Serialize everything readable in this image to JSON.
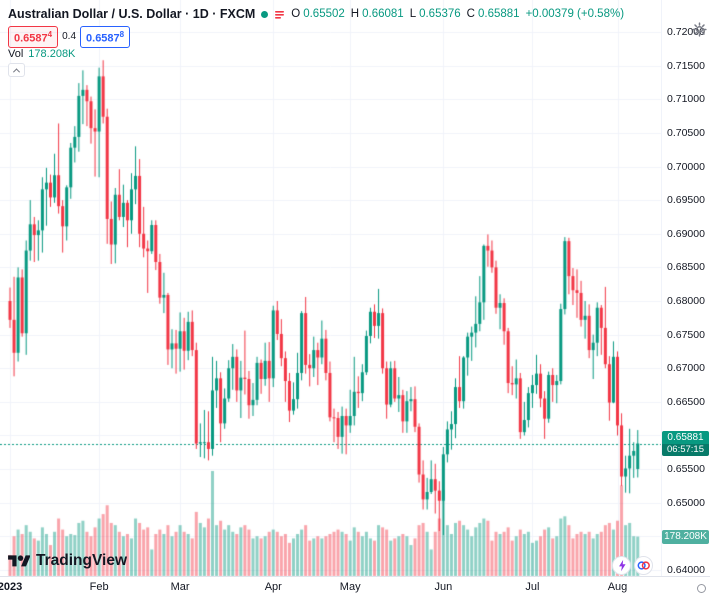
{
  "header": {
    "symbol_title": "Australian Dollar / U.S. Dollar · 1D · FXCM",
    "ohlc": {
      "o_label": "O",
      "o_value": "0.65502",
      "h_label": "H",
      "h_value": "0.66081",
      "l_label": "L",
      "l_value": "0.65376",
      "c_label": "C",
      "c_value": "0.65881",
      "change": "+0.00379 (+0.58%)"
    },
    "sell_price": "0.6587",
    "sell_pip": "4",
    "spread": "0.4",
    "buy_price": "0.6587",
    "buy_pip": "8",
    "volume_label": "Vol",
    "volume_value": "178.208K"
  },
  "footer": {
    "logo_text": "TradingView"
  },
  "colors_ui": {
    "up_teal": "#089981",
    "down_red": "#f23645",
    "buy_blue": "#2962ff",
    "badge_teal": "#089981",
    "countdown_teal": "#077a69",
    "vol_badge_teal": "#4fb0a0",
    "text_dark": "#131722"
  },
  "chart_data": {
    "type": "candlestick",
    "title": "Australian Dollar / U.S. Dollar",
    "interval": "1D",
    "exchange": "FXCM",
    "legend_position": "top-left",
    "grid": "faint",
    "colors": {
      "up": "#089981",
      "down": "#f23645",
      "vol_up": "rgba(8,153,129,0.45)",
      "vol_down": "rgba(242,54,69,0.45)"
    },
    "y_axis": {
      "min": 0.64,
      "max": 0.72,
      "tick_step": 0.005,
      "labels": [
        "0.72000",
        "0.71500",
        "0.71000",
        "0.70500",
        "0.70000",
        "0.69500",
        "0.69000",
        "0.68500",
        "0.68000",
        "0.67500",
        "0.67000",
        "0.66500",
        "0.66000",
        "0.65500",
        "0.65000",
        "0.64500",
        "0.64000"
      ]
    },
    "x_axis": {
      "ticks": [
        {
          "label": "2023",
          "index": 0,
          "bold": true
        },
        {
          "label": "Feb",
          "index": 22
        },
        {
          "label": "Mar",
          "index": 42
        },
        {
          "label": "Apr",
          "index": 65
        },
        {
          "label": "May",
          "index": 84
        },
        {
          "label": "Jun",
          "index": 107
        },
        {
          "label": "Jul",
          "index": 129
        },
        {
          "label": "Aug",
          "index": 150
        }
      ]
    },
    "current_price": {
      "value": "0.65881",
      "countdown": "06:57:15",
      "numeric": 0.65881
    },
    "last_volume": {
      "display": "178.208K",
      "numeric": 178.208
    },
    "volume_max_scale": 475,
    "candles": [
      [
        0.68,
        0.682,
        0.676,
        0.6772,
        95
      ],
      [
        0.6772,
        0.6836,
        0.6688,
        0.6723,
        180
      ],
      [
        0.6723,
        0.685,
        0.671,
        0.6835,
        210
      ],
      [
        0.6835,
        0.6847,
        0.6747,
        0.6752,
        190
      ],
      [
        0.6752,
        0.689,
        0.672,
        0.6875,
        230
      ],
      [
        0.6875,
        0.695,
        0.686,
        0.6914,
        200
      ],
      [
        0.6914,
        0.6925,
        0.6858,
        0.6898,
        170
      ],
      [
        0.6898,
        0.692,
        0.686,
        0.6905,
        160
      ],
      [
        0.6905,
        0.6984,
        0.6872,
        0.6966,
        220
      ],
      [
        0.6966,
        0.6998,
        0.6912,
        0.6976,
        190
      ],
      [
        0.6976,
        0.6988,
        0.694,
        0.6954,
        140
      ],
      [
        0.6954,
        0.7019,
        0.6946,
        0.6987,
        200
      ],
      [
        0.6987,
        0.7064,
        0.693,
        0.6941,
        260
      ],
      [
        0.6941,
        0.695,
        0.6872,
        0.6911,
        210
      ],
      [
        0.6911,
        0.6972,
        0.689,
        0.6969,
        180
      ],
      [
        0.6969,
        0.7035,
        0.6952,
        0.7028,
        190
      ],
      [
        0.7028,
        0.706,
        0.7006,
        0.7044,
        185
      ],
      [
        0.7044,
        0.7124,
        0.7022,
        0.7105,
        240
      ],
      [
        0.7105,
        0.7143,
        0.7063,
        0.7114,
        250
      ],
      [
        0.7114,
        0.7121,
        0.706,
        0.7097,
        200
      ],
      [
        0.7097,
        0.7104,
        0.7034,
        0.7057,
        180
      ],
      [
        0.7057,
        0.7085,
        0.6985,
        0.7052,
        220
      ],
      [
        0.7052,
        0.7147,
        0.6984,
        0.7134,
        260
      ],
      [
        0.7134,
        0.7158,
        0.7064,
        0.7074,
        280
      ],
      [
        0.7074,
        0.7086,
        0.6885,
        0.6922,
        320
      ],
      [
        0.6922,
        0.6948,
        0.6855,
        0.6884,
        240
      ],
      [
        0.6884,
        0.6968,
        0.6856,
        0.6958,
        230
      ],
      [
        0.6958,
        0.6996,
        0.692,
        0.6925,
        200
      ],
      [
        0.6925,
        0.6973,
        0.691,
        0.6946,
        180
      ],
      [
        0.6946,
        0.695,
        0.688,
        0.692,
        190
      ],
      [
        0.692,
        0.699,
        0.69,
        0.6966,
        170
      ],
      [
        0.6966,
        0.703,
        0.6944,
        0.6986,
        260
      ],
      [
        0.6986,
        0.7011,
        0.688,
        0.69,
        240
      ],
      [
        0.69,
        0.694,
        0.6865,
        0.6878,
        210
      ],
      [
        0.6878,
        0.689,
        0.6812,
        0.6874,
        220
      ],
      [
        0.6874,
        0.692,
        0.687,
        0.6913,
        120
      ],
      [
        0.6913,
        0.692,
        0.6846,
        0.6858,
        190
      ],
      [
        0.6858,
        0.687,
        0.6796,
        0.6805,
        210
      ],
      [
        0.6805,
        0.6842,
        0.6782,
        0.6809,
        190
      ],
      [
        0.6809,
        0.6812,
        0.6705,
        0.6728,
        230
      ],
      [
        0.6728,
        0.6758,
        0.67,
        0.6737,
        180
      ],
      [
        0.6737,
        0.6757,
        0.6692,
        0.6729,
        200
      ],
      [
        0.6729,
        0.6783,
        0.6695,
        0.6755,
        230
      ],
      [
        0.6755,
        0.6775,
        0.6698,
        0.6726,
        200
      ],
      [
        0.6726,
        0.6784,
        0.6712,
        0.6769,
        190
      ],
      [
        0.6769,
        0.6786,
        0.6718,
        0.6727,
        170
      ],
      [
        0.6727,
        0.6738,
        0.658,
        0.6588,
        290
      ],
      [
        0.6588,
        0.6618,
        0.6568,
        0.659,
        240
      ],
      [
        0.659,
        0.6638,
        0.6566,
        0.659,
        220
      ],
      [
        0.659,
        0.6636,
        0.6563,
        0.658,
        260
      ],
      [
        0.658,
        0.6717,
        0.657,
        0.6667,
        475
      ],
      [
        0.6667,
        0.6711,
        0.6641,
        0.6685,
        230
      ],
      [
        0.6685,
        0.6694,
        0.659,
        0.6618,
        250
      ],
      [
        0.6618,
        0.667,
        0.661,
        0.6655,
        210
      ],
      [
        0.6655,
        0.6712,
        0.665,
        0.67,
        230
      ],
      [
        0.67,
        0.6736,
        0.6668,
        0.6717,
        200
      ],
      [
        0.6717,
        0.6728,
        0.665,
        0.6667,
        190
      ],
      [
        0.6667,
        0.6711,
        0.6626,
        0.6686,
        220
      ],
      [
        0.6686,
        0.6756,
        0.6661,
        0.6684,
        230
      ],
      [
        0.6684,
        0.6696,
        0.6625,
        0.6645,
        210
      ],
      [
        0.6645,
        0.6678,
        0.6629,
        0.6653,
        170
      ],
      [
        0.6653,
        0.6717,
        0.6645,
        0.6708,
        180
      ],
      [
        0.6708,
        0.6713,
        0.6662,
        0.6684,
        170
      ],
      [
        0.6684,
        0.6738,
        0.6674,
        0.6711,
        180
      ],
      [
        0.6711,
        0.6739,
        0.665,
        0.6685,
        200
      ],
      [
        0.6685,
        0.6793,
        0.6672,
        0.6786,
        210
      ],
      [
        0.6786,
        0.68,
        0.6742,
        0.6751,
        200
      ],
      [
        0.6751,
        0.6773,
        0.6703,
        0.6715,
        180
      ],
      [
        0.6715,
        0.6725,
        0.665,
        0.6681,
        190
      ],
      [
        0.6681,
        0.6693,
        0.662,
        0.6637,
        150
      ],
      [
        0.6637,
        0.6679,
        0.6631,
        0.6654,
        170
      ],
      [
        0.6654,
        0.6723,
        0.664,
        0.6693,
        190
      ],
      [
        0.6693,
        0.6785,
        0.6682,
        0.6782,
        210
      ],
      [
        0.6782,
        0.6806,
        0.6692,
        0.6705,
        230
      ],
      [
        0.6705,
        0.6721,
        0.6673,
        0.67,
        160
      ],
      [
        0.67,
        0.6747,
        0.6687,
        0.6727,
        170
      ],
      [
        0.6727,
        0.6738,
        0.6675,
        0.6716,
        180
      ],
      [
        0.6716,
        0.6771,
        0.6706,
        0.6744,
        170
      ],
      [
        0.6744,
        0.6757,
        0.6682,
        0.6693,
        180
      ],
      [
        0.6693,
        0.671,
        0.6621,
        0.6627,
        190
      ],
      [
        0.6627,
        0.664,
        0.659,
        0.6626,
        200
      ],
      [
        0.6626,
        0.6635,
        0.658,
        0.6598,
        210
      ],
      [
        0.6598,
        0.6643,
        0.6573,
        0.6629,
        200
      ],
      [
        0.6629,
        0.664,
        0.6572,
        0.6615,
        190
      ],
      [
        0.6615,
        0.6668,
        0.6604,
        0.6629,
        160
      ],
      [
        0.6629,
        0.6717,
        0.6615,
        0.6665,
        220
      ],
      [
        0.6665,
        0.6688,
        0.6641,
        0.6663,
        200
      ],
      [
        0.6663,
        0.6706,
        0.6651,
        0.6694,
        180
      ],
      [
        0.6694,
        0.6756,
        0.669,
        0.6748,
        200
      ],
      [
        0.6748,
        0.679,
        0.6737,
        0.6784,
        170
      ],
      [
        0.6784,
        0.6795,
        0.6745,
        0.6763,
        160
      ],
      [
        0.6763,
        0.6818,
        0.6744,
        0.6782,
        230
      ],
      [
        0.6782,
        0.6789,
        0.6692,
        0.67,
        220
      ],
      [
        0.67,
        0.671,
        0.6625,
        0.6646,
        210
      ],
      [
        0.6646,
        0.671,
        0.6642,
        0.67,
        160
      ],
      [
        0.67,
        0.6711,
        0.665,
        0.6655,
        170
      ],
      [
        0.6655,
        0.6687,
        0.6635,
        0.666,
        180
      ],
      [
        0.666,
        0.6668,
        0.6604,
        0.6621,
        190
      ],
      [
        0.6621,
        0.6666,
        0.6604,
        0.6651,
        180
      ],
      [
        0.6651,
        0.6672,
        0.6636,
        0.6654,
        140
      ],
      [
        0.6654,
        0.6673,
        0.6605,
        0.6613,
        170
      ],
      [
        0.6613,
        0.6618,
        0.653,
        0.6542,
        230
      ],
      [
        0.6542,
        0.6563,
        0.649,
        0.6505,
        240
      ],
      [
        0.6505,
        0.6537,
        0.649,
        0.6516,
        200
      ],
      [
        0.6516,
        0.6563,
        0.6513,
        0.6535,
        120
      ],
      [
        0.6535,
        0.6558,
        0.6484,
        0.6518,
        200
      ],
      [
        0.6518,
        0.6532,
        0.6458,
        0.6503,
        260
      ],
      [
        0.6503,
        0.6583,
        0.6452,
        0.6572,
        390
      ],
      [
        0.6572,
        0.6621,
        0.656,
        0.6609,
        230
      ],
      [
        0.6609,
        0.6636,
        0.6579,
        0.6617,
        190
      ],
      [
        0.6617,
        0.6685,
        0.6596,
        0.6672,
        240
      ],
      [
        0.6672,
        0.6718,
        0.6641,
        0.6651,
        250
      ],
      [
        0.6651,
        0.6718,
        0.664,
        0.6716,
        230
      ],
      [
        0.6716,
        0.6753,
        0.6689,
        0.6747,
        210
      ],
      [
        0.6747,
        0.6762,
        0.6711,
        0.6753,
        180
      ],
      [
        0.6753,
        0.6807,
        0.6731,
        0.6766,
        220
      ],
      [
        0.6766,
        0.6837,
        0.6755,
        0.6798,
        240
      ],
      [
        0.6798,
        0.6884,
        0.6772,
        0.6882,
        260
      ],
      [
        0.6882,
        0.6899,
        0.6851,
        0.6875,
        250
      ],
      [
        0.6875,
        0.689,
        0.6842,
        0.685,
        160
      ],
      [
        0.685,
        0.686,
        0.6781,
        0.679,
        200
      ],
      [
        0.679,
        0.681,
        0.6758,
        0.6797,
        190
      ],
      [
        0.6797,
        0.6804,
        0.6735,
        0.6755,
        200
      ],
      [
        0.6755,
        0.676,
        0.6663,
        0.6678,
        220
      ],
      [
        0.6678,
        0.6703,
        0.666,
        0.6676,
        160
      ],
      [
        0.6676,
        0.6713,
        0.6655,
        0.6685,
        180
      ],
      [
        0.6685,
        0.6693,
        0.6595,
        0.6605,
        210
      ],
      [
        0.6605,
        0.665,
        0.66,
        0.6623,
        190
      ],
      [
        0.6623,
        0.6672,
        0.6612,
        0.6663,
        200
      ],
      [
        0.6663,
        0.669,
        0.6641,
        0.6675,
        150
      ],
      [
        0.6675,
        0.672,
        0.6662,
        0.6692,
        160
      ],
      [
        0.6692,
        0.6706,
        0.6642,
        0.6655,
        180
      ],
      [
        0.6655,
        0.6666,
        0.6595,
        0.6625,
        210
      ],
      [
        0.6625,
        0.6695,
        0.6619,
        0.669,
        220
      ],
      [
        0.669,
        0.67,
        0.665,
        0.6675,
        170
      ],
      [
        0.6675,
        0.669,
        0.6648,
        0.6681,
        180
      ],
      [
        0.6681,
        0.6796,
        0.6676,
        0.6788,
        260
      ],
      [
        0.6788,
        0.6895,
        0.678,
        0.6889,
        270
      ],
      [
        0.6889,
        0.6894,
        0.681,
        0.6837,
        230
      ],
      [
        0.6837,
        0.6849,
        0.6794,
        0.6816,
        170
      ],
      [
        0.6816,
        0.6847,
        0.6775,
        0.6812,
        190
      ],
      [
        0.6812,
        0.683,
        0.6762,
        0.6772,
        200
      ],
      [
        0.6772,
        0.68,
        0.6744,
        0.6778,
        190
      ],
      [
        0.6778,
        0.6795,
        0.6715,
        0.6727,
        200
      ],
      [
        0.6727,
        0.675,
        0.6684,
        0.6738,
        170
      ],
      [
        0.6738,
        0.6798,
        0.6718,
        0.679,
        190
      ],
      [
        0.679,
        0.6794,
        0.672,
        0.676,
        200
      ],
      [
        0.676,
        0.6821,
        0.67,
        0.6706,
        230
      ],
      [
        0.6706,
        0.6718,
        0.6622,
        0.6649,
        240
      ],
      [
        0.6649,
        0.674,
        0.6648,
        0.6717,
        210
      ],
      [
        0.6717,
        0.6725,
        0.66,
        0.6615,
        250
      ],
      [
        0.6615,
        0.6633,
        0.6525,
        0.6539,
        410
      ],
      [
        0.6539,
        0.657,
        0.6515,
        0.6551,
        230
      ],
      [
        0.6551,
        0.661,
        0.6514,
        0.657,
        240
      ],
      [
        0.657,
        0.659,
        0.6537,
        0.6577,
        180
      ],
      [
        0.65502,
        0.66081,
        0.65376,
        0.65881,
        178.208
      ]
    ]
  }
}
